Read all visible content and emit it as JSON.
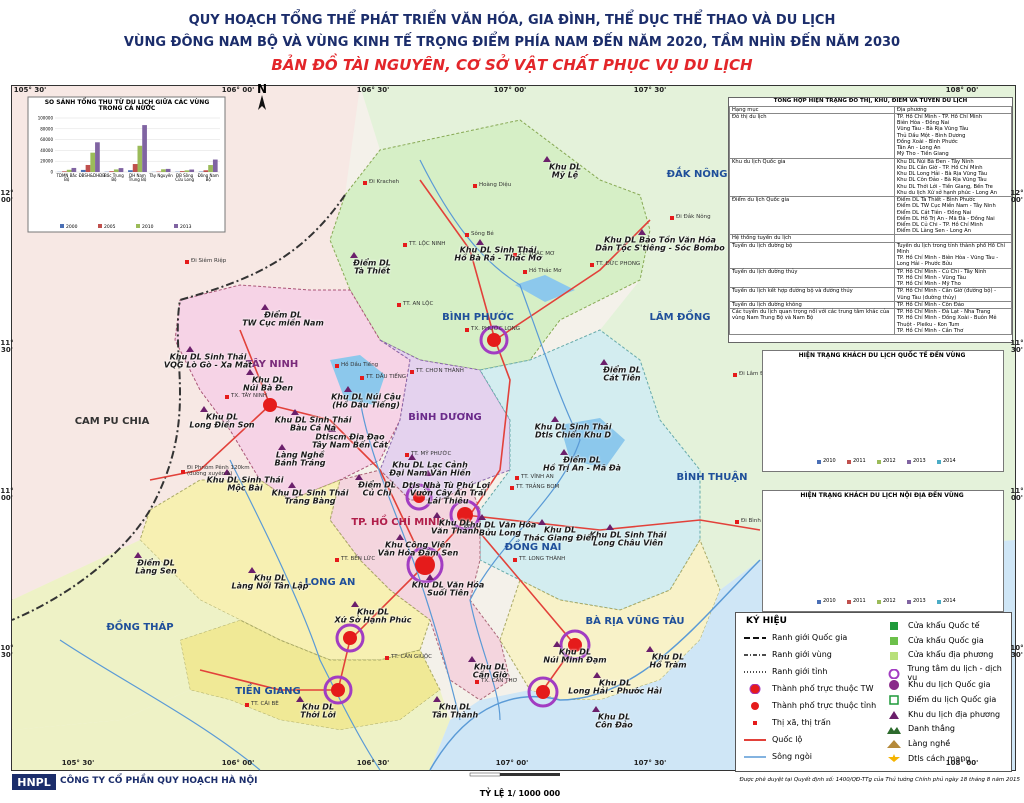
{
  "header": {
    "title_lines": [
      "QUY HOẠCH TỔNG THỂ PHÁT TRIỂN VĂN HÓA, GIA ĐÌNH, THỂ DỤC THỂ THAO VÀ DU LỊCH",
      "VÙNG ĐÔNG NAM BỘ VÀ VÙNG KINH TẾ TRỌNG ĐIỂM PHÍA NAM ĐẾN NĂM 2020, TẦM NHÌN ĐẾN NĂM 2030"
    ],
    "subtitle": "BẢN ĐỒ TÀI NGUYÊN, CƠ SỞ VẬT CHẤT PHỤC VỤ DU LỊCH"
  },
  "grid_labels": {
    "lon": [
      "105° 30'",
      "106° 00'",
      "106° 30'",
      "107° 00'",
      "107° 30'",
      "108° 00'"
    ],
    "lat": [
      "12°\n00'",
      "11°\n30'",
      "11°\n00'",
      "10°\n30'"
    ]
  },
  "regions": [
    "CAM PU CHIA",
    "TÂY NINH",
    "BÌNH PHƯỚC",
    "BÌNH DƯƠNG",
    "ĐẮK NÔNG",
    "LÂM ĐỒNG",
    "BÌNH THUẬN",
    "TP. HỒ CHÍ MINH",
    "ĐỒNG NAI",
    "LONG AN",
    "ĐỒNG THÁP",
    "TIỀN GIANG",
    "BÀ RỊA VŨNG TÀU"
  ],
  "places": [
    "Khu DL\nMỹ Lệ",
    "Khu DL Bảo Tồn Văn Hóa\nDân Tộc S'tiêng - Sóc Bombo",
    "Khu DL Sinh Thái\nHồ Bà Rá - Thác Mơ",
    "Điểm DL\nTà Thiết",
    "Điểm DL\nTW Cục miền Nam",
    "Khu DL Sinh Thái\nVQG Lò Gò - Xa Mát",
    "Khu DL\nNúi Bà Đen",
    "Khu DL Núi Cậu\n(Hồ Dầu Tiếng)",
    "Khu DL\nLong Điền Sơn",
    "Khu DL Sinh Thái\nBàu Cá Nả",
    "Điểm DL\nCát Tiên",
    "Khu DL Sinh Thái\nDtls Chiến Khu D",
    "Điểm DL\nHồ Trị An - Mã Đà",
    "Dtlscm Địa Đạo\nTây Nam Bến Cát",
    "Làng Nghề\nBánh Tráng",
    "Khu DL Lạc Cảnh\nĐại Nam Văn Hiến",
    "Dtls Nhà Tù Phú Lợi",
    "Vườn Cây Ăn Trái\nLái Thiêu",
    "Điểm DL\nCủ Chi",
    "Khu DL Sinh Thái\nMộc Bài",
    "Khu DL Sinh Thái\nTrảng Bàng",
    "Khu DL Văn Hóa\nBửu Long",
    "Khu DL Sinh Thái\nLong Châu Viên",
    "Khu DL\nThác Giang Điền",
    "Khu Công Viên\nVăn Hóa Đầm Sen",
    "Khu DL\nVăn Thánh",
    "Khu DL Văn Hóa\nSuối Tiên",
    "Điểm DL\nLàng Sen",
    "Khu DL\nLàng Nổi Tân Lập",
    "Khu DL\nXứ Sở Hạnh Phúc",
    "Khu DL\nCần Giờ",
    "Khu DL\nNúi Minh Đạm",
    "Khu DL\nHồ Tràm",
    "Khu DL\nLong Hải - Phước Hải",
    "Khu DL\nThới Lới",
    "Khu DL\nTân Thành",
    "Khu DL\nCôn Đảo"
  ],
  "towns": [
    "TT. LỘC NINH",
    "TX. PHƯỚC LONG",
    "TT. ĐỨC PHONG",
    "TT. THÁC MƠ",
    "TT. AN LỘC",
    "TT. CHƠN THÀNH",
    "TT. DẦU TIẾNG",
    "TX. TÂY NINH",
    "TT. MỸ PHƯỚC",
    "TT. TRẢNG BOM",
    "TT. LONG THÀNH",
    "TX. CẦN THƠ",
    "TT. BẾN LỨC",
    "TT. CÁI BÈ",
    "TT. CẦN GIUỘC",
    "TT. VĨNH AN",
    "Đi Kracheh",
    "Đi Siêm Riệp",
    "Đi Phnôm Pênh 120km\n(đường xuyên á)",
    "Đi Bình Thuận",
    "Đi Lâm Đồng",
    "Đi Đắk Nông",
    "Sông Bé",
    "Hồ Dầu Tiếng",
    "Hồ Thác Mơ",
    "Hoàng Diệu"
  ],
  "inset_chart": {
    "type": "bar",
    "title": "SO SÁNH TỔNG THU TỪ DU LỊCH GIỮA CÁC VÙNG TRONG CẢ NƯỚC",
    "categories": [
      "TDMN Bắc Bộ",
      "ĐBSH&DHĐB",
      "Bắc Trung Bộ",
      "DH Nam Trung Bộ",
      "Tây Nguyên",
      "ĐB Sông Cửu Long",
      "Đông Nam Bộ"
    ],
    "series": [
      {
        "name": "2000",
        "color": "#4a6fb5",
        "values": [
          361.66,
          3848.8,
          507.28,
          3330.6,
          278.83,
          571.96,
          770.81
        ]
      },
      {
        "name": "2005",
        "color": "#c0504d",
        "values": [
          1285.12,
          13017,
          1495.2,
          14752.6,
          838.27,
          1604.9,
          3187.06
        ]
      },
      {
        "name": "2010",
        "color": "#9bbb59",
        "values": [
          4078.51,
          35808.98,
          4747,
          48567.6,
          5015.5,
          3016.46,
          12913.08
        ]
      },
      {
        "name": "2013",
        "color": "#8064a2",
        "values": [
          7502,
          55020.21,
          7229,
          86880.5,
          5734.1,
          4576.36,
          23074
        ]
      }
    ],
    "ylim": [
      0,
      100000
    ],
    "yticks": [
      0,
      20000,
      40000,
      60000,
      80000,
      100000
    ]
  },
  "side_charts": [
    {
      "title": "HIỆN TRẠNG KHÁCH DU LỊCH QUỐC TẾ ĐẾN VÙNG",
      "years": [
        "2010",
        "2011",
        "2012",
        "2013",
        "2014"
      ]
    },
    {
      "title": "HIỆN TRẠNG KHÁCH DU LỊCH NỘI ĐỊA ĐẾN VÙNG",
      "years": [
        "2010",
        "2011",
        "2012",
        "2013",
        "2014"
      ]
    }
  ],
  "table": {
    "title": "TỔNG HỢP HIỆN TRẠNG ĐÔ THỊ, KHU, ĐIỂM VÀ TUYẾN DU LỊCH",
    "columns": [
      "Hạng mục",
      "Địa phương"
    ],
    "rows": [
      [
        "Đô thị du lịch",
        "TP. Hồ Chí Minh - TP. Hồ Chí Minh\nBiên Hòa - Đồng Nai\nVũng Tàu - Bà Rịa Vũng Tàu\nThủ Dầu Một - Bình Dương\nĐồng Xoài - Bình Phước\nTân An - Long An\nMỹ Tho - Tiền Giang"
      ],
      [
        "Khu du lịch Quốc gia",
        "Khu DL Núi Bà Đen - Tây Ninh\nKhu DL Cần Giờ - TP. Hồ Chí Minh\nKhu DL Long Hải - Bà Rịa Vũng Tàu\nKhu DL Côn Đảo - Bà Rịa Vũng Tàu\nKhu DL Thới Lới - Tiền Giang, Bến Tre\nKhu du lịch Xứ sở hạnh phúc - Long An"
      ],
      [
        "Điểm du lịch Quốc gia",
        "Điểm DL Tà Thiết - Bình Phước\nĐiểm DL TW Cục Miền Nam - Tây Ninh\nĐiểm DL Cát Tiên - Đồng Nai\nĐiểm DL Hồ Trị An - Mã Đà - Đồng Nai\nĐiểm DL Củ Chi - TP. Hồ Chí Minh\nĐiểm DL Làng Sen - Long An"
      ],
      [
        "Hệ thống tuyến du lịch",
        ""
      ],
      [
        "Tuyến du lịch đường bộ",
        "Tuyến du lịch trong tỉnh thành phố Hồ Chí Minh\nTP. Hồ Chí Minh - Biên Hòa - Vũng Tàu - Long Hải - Phước Bửu"
      ],
      [
        "Tuyến du lịch đường thủy",
        "TP. Hồ Chí Minh - Củ Chi - Tây Ninh\nTP. Hồ Chí Minh - Vũng Tàu\nTP. Hồ Chí Minh - Mỹ Tho"
      ],
      [
        "Tuyến du lịch kết hợp đường bộ và đường thủy",
        "TP. Hồ Chí Minh - Cần Giờ (đường bộ) - Vũng Tàu (đường thủy)"
      ],
      [
        "Tuyến du lịch đường không",
        "TP. Hồ Chí Minh - Côn Đảo"
      ],
      [
        "Các tuyến du lịch quan trọng nối với các trung tâm khác của vùng Nam Trung Bộ và Nam Bộ",
        "TP. Hồ Chí Minh - Đà Lạt - Nha Trang\nTP. Hồ Chí Minh - Đồng Xoài - Buôn Mê Thuột - Pleiku - Kon Tum\nTP. Hồ Chí Minh - Cần Thơ"
      ]
    ]
  },
  "legend": {
    "title": "KÝ HIỆU",
    "left": [
      "Ranh giới Quốc gia",
      "Ranh giới vùng",
      "Ranh giới tỉnh",
      "Thành phố trực thuộc TW",
      "Thành phố trực thuộc tỉnh",
      "Thị xã, thị trấn",
      "Quốc lộ",
      "Sông ngòi"
    ],
    "right": [
      "Cửa khẩu Quốc tế",
      "Cửa khẩu Quốc gia",
      "Cửa khẩu địa phương",
      "Trung tâm du lịch - dịch vụ",
      "Khu du lịch Quốc gia",
      "Điểm du lịch Quốc gia",
      "Khu du lịch địa phương",
      "Danh thắng",
      "Làng nghề",
      "Dtls cách mạng"
    ]
  },
  "footer": {
    "logo": "HNPL",
    "company": "CÔNG TY CỔ PHẦN QUY HOẠCH HÀ NỘI",
    "scale": "TỶ LỆ 1/ 1000 000",
    "note": "Được phê duyệt tại Quyết định số: 1400/QĐ-TTg của Thủ tướng Chính phủ ngày 18 tháng 8 năm 2015"
  }
}
